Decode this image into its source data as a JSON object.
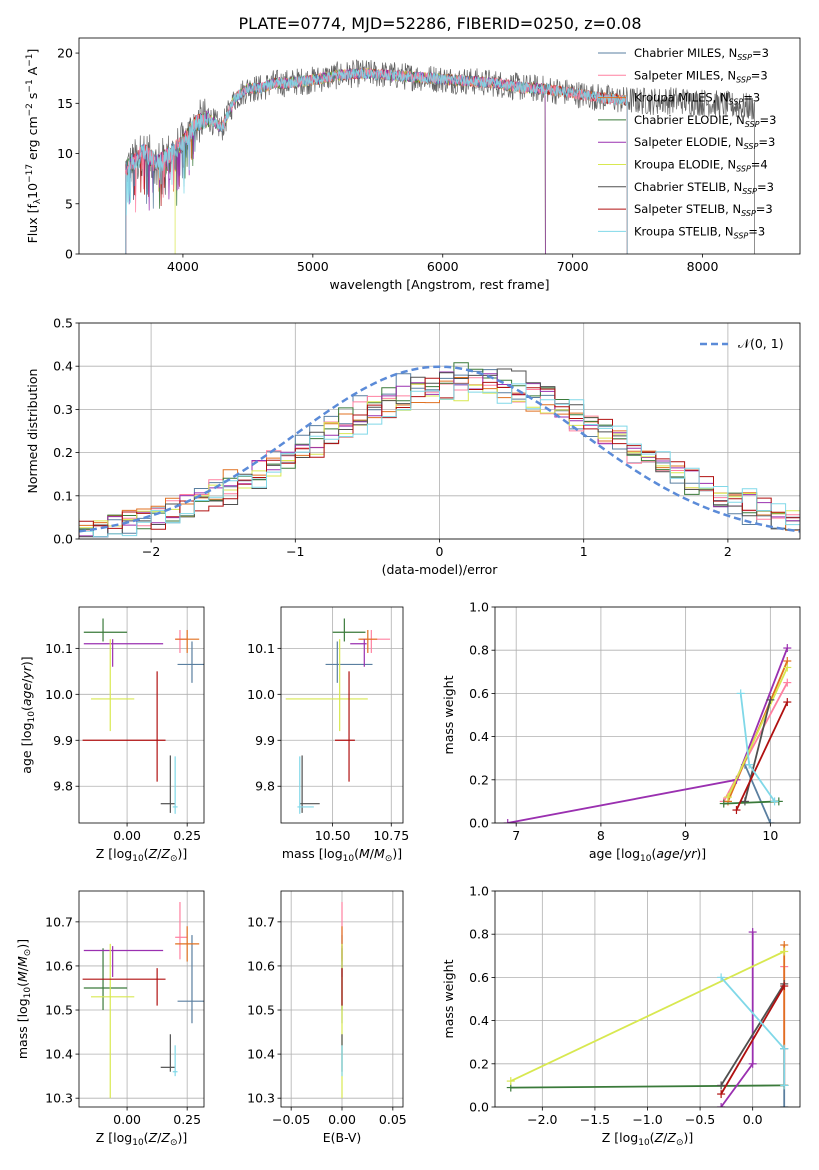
{
  "title": "PLATE=0774, MJD=52286, FIBERID=0250, z=0.08",
  "colors": {
    "Chabrier MILES": "#5a7fa0",
    "Salpeter MILES": "#ff80a0",
    "Kroupa MILES": "#e07020",
    "Chabrier ELODIE": "#3a7a3a",
    "Salpeter ELODIE": "#9a30b0",
    "Kroupa ELODIE": "#d8e850",
    "Chabrier STELIB": "#505050",
    "Salpeter STELIB": "#b01010",
    "Kroupa STELIB": "#80d8e8",
    "normal": "#5b8bd8",
    "blue": "#5b8bd8"
  },
  "chart_data": [
    {
      "id": "spectrum",
      "type": "line",
      "xlabel": "wavelength [Angstrom, rest frame]",
      "ylabel": "Flux [fλ10⁻¹⁷ erg cm⁻² s⁻¹ A⁻¹]",
      "xlim": [
        3200,
        8750
      ],
      "ylim": [
        0,
        21.5
      ],
      "xticks": [
        4000,
        5000,
        6000,
        7000,
        8000
      ],
      "yticks": [
        0,
        5,
        10,
        15,
        20
      ],
      "grid": false,
      "legend_position": "top-right",
      "legend": [
        {
          "model": "Chabrier MILES",
          "label": "Chabrier MILES, N",
          "n": "3"
        },
        {
          "model": "Salpeter MILES",
          "label": "Salpeter MILES, N",
          "n": "3"
        },
        {
          "model": "Kroupa MILES",
          "label": "Kroupa MILES, N",
          "n": "3"
        },
        {
          "model": "Chabrier ELODIE",
          "label": "Chabrier ELODIE, N",
          "n": "3"
        },
        {
          "model": "Salpeter ELODIE",
          "label": "Salpeter ELODIE, N",
          "n": "3"
        },
        {
          "model": "Kroupa ELODIE",
          "label": "Kroupa ELODIE, N",
          "n": "4"
        },
        {
          "model": "Chabrier STELIB",
          "label": "Chabrier STELIB, N",
          "n": "3"
        },
        {
          "model": "Salpeter STELIB",
          "label": "Salpeter STELIB, N",
          "n": "3"
        },
        {
          "model": "Kroupa STELIB",
          "label": "Kroupa STELIB, N",
          "n": "3"
        }
      ],
      "legend_subscript": "SSP",
      "continuum": {
        "x": [
          3560,
          3650,
          3700,
          3800,
          3900,
          4000,
          4100,
          4200,
          4300,
          4400,
          4500,
          4600,
          4700,
          4800,
          4900,
          5000,
          5200,
          5400,
          5600,
          5800,
          6000,
          6200,
          6400,
          6600,
          6800,
          7000,
          7200,
          7400,
          7600,
          7800,
          8000,
          8200,
          8400
        ],
        "y": [
          8.5,
          9.5,
          10.2,
          9.0,
          10.0,
          11.0,
          13.0,
          13.5,
          12.5,
          15.5,
          16.5,
          16.5,
          17.0,
          17.0,
          17.2,
          17.3,
          17.8,
          18.0,
          17.8,
          17.6,
          17.4,
          17.2,
          17.0,
          16.6,
          16.4,
          16.0,
          15.6,
          15.3,
          15.2,
          15.3,
          15.1,
          14.8,
          14.6
        ]
      },
      "drops_to_zero": [
        3560,
        3700,
        3940,
        5180,
        5890,
        6560,
        6640,
        6790,
        7250,
        7420
      ]
    },
    {
      "id": "residuals",
      "type": "histogram",
      "xlabel": "(data-model)/error",
      "ylabel": "Normed distribution",
      "xlim": [
        -2.5,
        2.5
      ],
      "ylim": [
        0,
        0.5
      ],
      "xticks": [
        -2,
        -1,
        0,
        1,
        2
      ],
      "yticks": [
        0.0,
        0.1,
        0.2,
        0.3,
        0.4,
        0.5
      ],
      "grid": true,
      "legend_position": "top-right",
      "legend_label": "𝒩(0, 1)",
      "bin_width": 0.1,
      "curve": "normal(0,1), dashed"
    },
    {
      "id": "age-vs-Z",
      "type": "errorbar",
      "xlabel": "Z [log₁₀(Z/Z⊙)]",
      "ylabel": "age  [log₁₀(age/yr)]",
      "xlim": [
        -0.2,
        0.32
      ],
      "ylim": [
        9.72,
        10.19
      ],
      "xticks": [
        -0.0,
        0.25
      ],
      "yticks": [
        9.8,
        9.9,
        10.0,
        10.1
      ],
      "grid": true
    },
    {
      "id": "age-vs-mass",
      "type": "errorbar",
      "xlabel": "mass [log₁₀(M/M⊙)]",
      "ylabel": "",
      "xlim": [
        10.28,
        10.8
      ],
      "ylim": [
        9.72,
        10.19
      ],
      "xticks": [
        10.5,
        10.75
      ],
      "yticks": [
        9.8,
        9.9,
        10.0,
        10.1
      ],
      "grid": true
    },
    {
      "id": "weight-vs-age",
      "type": "line",
      "xlabel": "age  [log₁₀(age/yr)]",
      "ylabel": "mass weight",
      "xlim": [
        6.75,
        10.35
      ],
      "ylim": [
        0,
        1.0
      ],
      "xticks": [
        7,
        8,
        9,
        10
      ],
      "yticks": [
        0.0,
        0.2,
        0.4,
        0.6,
        0.8,
        1.0
      ],
      "grid": true
    },
    {
      "id": "mass-vs-Z",
      "type": "errorbar",
      "xlabel": "Z [log₁₀(Z/Z⊙)]",
      "ylabel": "mass [log₁₀(M/M⊙)]",
      "xlim": [
        -0.2,
        0.32
      ],
      "ylim": [
        10.28,
        10.77
      ],
      "xticks": [
        0.0,
        0.25
      ],
      "yticks": [
        10.3,
        10.4,
        10.5,
        10.6,
        10.7
      ],
      "grid": true
    },
    {
      "id": "mass-vs-EBV",
      "type": "errorbar",
      "xlabel": "E(B-V)",
      "ylabel": "",
      "xlim": [
        -0.06,
        0.06
      ],
      "ylim": [
        10.28,
        10.77
      ],
      "xticks": [
        -0.05,
        0.0,
        0.05
      ],
      "yticks": [
        10.3,
        10.4,
        10.5,
        10.6,
        10.7
      ],
      "grid": true
    },
    {
      "id": "weight-vs-Z",
      "type": "line",
      "xlabel": "Z [log₁₀(Z/Z⊙)]",
      "ylabel": "mass weight",
      "xlim": [
        -2.45,
        0.45
      ],
      "ylim": [
        0,
        1.0
      ],
      "xticks": [
        -2.0,
        -1.5,
        -1.0,
        -0.5,
        0.0
      ],
      "yticks": [
        0.0,
        0.2,
        0.4,
        0.6,
        0.8,
        1.0
      ],
      "grid": true
    }
  ],
  "fits": [
    {
      "model": "Chabrier MILES",
      "Z": 0.27,
      "dZl": 0.06,
      "dZh": 0.06,
      "age": 10.065,
      "dAl": 0.04,
      "dAh": 0.05,
      "mass": 10.52,
      "dMl": 0.05,
      "dMh": 0.15,
      "ebv": 0.0,
      "dEl": 0.0,
      "dEh": 0.0
    },
    {
      "model": "Salpeter MILES",
      "Z": 0.22,
      "dZl": 0.02,
      "dZh": 0.03,
      "age": 10.12,
      "dAl": 0.03,
      "dAh": 0.02,
      "mass": 10.665,
      "dMl": 0.05,
      "dMh": 0.08,
      "ebv": 0.0,
      "dEl": 0.0,
      "dEh": 0.0
    },
    {
      "model": "Kroupa MILES",
      "Z": 0.25,
      "dZl": 0.05,
      "dZh": 0.05,
      "age": 10.12,
      "dAl": 0.03,
      "dAh": 0.02,
      "mass": 10.65,
      "dMl": 0.04,
      "dMh": 0.04,
      "ebv": 0.0,
      "dEl": 0.0,
      "dEh": 0.0
    },
    {
      "model": "Chabrier ELODIE",
      "Z": -0.1,
      "dZl": 0.08,
      "dZh": 0.1,
      "age": 10.135,
      "dAl": 0.02,
      "dAh": 0.03,
      "mass": 10.55,
      "dMl": 0.05,
      "dMh": 0.09,
      "ebv": 0.0,
      "dEl": 0.0,
      "dEh": 0.0
    },
    {
      "model": "Salpeter ELODIE",
      "Z": -0.06,
      "dZl": 0.12,
      "dZh": 0.21,
      "age": 10.11,
      "dAl": 0.05,
      "dAh": 0.01,
      "mass": 10.635,
      "dMl": 0.06,
      "dMh": 0.01,
      "ebv": 0.0,
      "dEl": 0.0,
      "dEh": 0.0
    },
    {
      "model": "Kroupa ELODIE",
      "Z": -0.07,
      "dZl": 0.08,
      "dZh": 0.1,
      "age": 9.99,
      "dAl": 0.07,
      "dAh": 0.13,
      "mass": 10.53,
      "dMl": 0.23,
      "dMh": 0.12,
      "ebv": 0.0,
      "dEl": 0.0,
      "dEh": 0.0
    },
    {
      "model": "Chabrier STELIB",
      "Z": 0.18,
      "dZl": 0.04,
      "dZh": 0.02,
      "age": 9.762,
      "dAl": 0.02,
      "dAh": 0.105,
      "mass": 10.37,
      "dMl": 0.01,
      "dMh": 0.075,
      "ebv": 0.0,
      "dEl": 0.0,
      "dEh": 0.0
    },
    {
      "model": "Salpeter STELIB",
      "Z": 0.125,
      "dZl": 0.31,
      "dZh": 0.035,
      "age": 9.9,
      "dAl": 0.09,
      "dAh": 0.15,
      "mass": 10.57,
      "dMl": 0.06,
      "dMh": 0.025,
      "ebv": 0.0,
      "dEl": 0.0,
      "dEh": 0.0
    },
    {
      "model": "Kroupa STELIB",
      "Z": 0.2,
      "dZl": 0.01,
      "dZh": 0.01,
      "age": 9.755,
      "dAl": 0.015,
      "dAh": 0.11,
      "mass": 10.36,
      "dMl": 0.01,
      "dMh": 0.06,
      "ebv": 0.0,
      "dEl": 0.0,
      "dEh": 0.0
    }
  ],
  "components": [
    {
      "model": "Chabrier MILES",
      "age": [
        9.7,
        10.0
      ],
      "Z": [
        0.3,
        0.3
      ],
      "w": [
        0.27,
        0.0
      ]
    },
    {
      "model": "Salpeter MILES",
      "age": [
        9.45,
        10.2
      ],
      "Z": [
        0.3,
        0.3
      ],
      "w": [
        0.1,
        0.65
      ]
    },
    {
      "model": "Kroupa MILES",
      "age": [
        9.5,
        10.2
      ],
      "Z": [
        0.3,
        0.3
      ],
      "w": [
        0.1,
        0.75
      ]
    },
    {
      "model": "Chabrier ELODIE",
      "age": [
        9.45,
        10.1
      ],
      "Z": [
        -2.3,
        0.3
      ],
      "w": [
        0.09,
        0.1
      ]
    },
    {
      "model": "Salpeter ELODIE",
      "age": [
        6.9,
        9.6,
        10.2
      ],
      "Z": [
        -0.3,
        0.0,
        0.0
      ],
      "w": [
        0.0,
        0.2,
        0.81
      ]
    },
    {
      "model": "Kroupa ELODIE",
      "age": [
        9.5,
        10.2
      ],
      "Z": [
        -2.3,
        0.3
      ],
      "w": [
        0.12,
        0.72
      ]
    },
    {
      "model": "Chabrier STELIB",
      "age": [
        9.7,
        10.0
      ],
      "Z": [
        -0.3,
        0.3
      ],
      "w": [
        0.1,
        0.57
      ]
    },
    {
      "model": "Salpeter STELIB",
      "age": [
        9.6,
        10.2
      ],
      "Z": [
        -0.3,
        0.3
      ],
      "w": [
        0.06,
        0.56
      ]
    },
    {
      "model": "Kroupa STELIB",
      "age": [
        9.65,
        9.75,
        10.05
      ],
      "Z": [
        -0.3,
        0.3,
        0.3
      ],
      "w": [
        0.6,
        0.27,
        0.1
      ]
    }
  ]
}
